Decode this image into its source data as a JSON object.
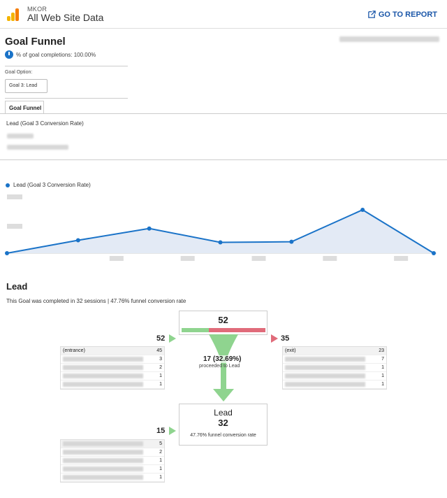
{
  "header": {
    "account": "MKOR",
    "property": "All Web Site Data",
    "go_to_report": "GO TO REPORT"
  },
  "page": {
    "title": "Goal Funnel",
    "completion_pct": "% of goal completions: 100.00%"
  },
  "goal_option": {
    "label": "Goal Option:",
    "selected": "Goal 3: Lead"
  },
  "tabs": [
    {
      "label": "Goal Funnel"
    }
  ],
  "metric": {
    "name": "Lead (Goal 3 Conversion Rate)",
    "legend": "Lead (Goal 3 Conversion Rate)"
  },
  "chart_data": {
    "type": "line",
    "series": [
      {
        "name": "Lead (Goal 3 Conversion Rate)",
        "values": [
          0,
          0.43,
          0.82,
          0.36,
          0.38,
          1.44,
          0
        ]
      }
    ],
    "color": "#1a73c8"
  },
  "funnel": {
    "title": "Lead",
    "subtitle": "This Goal was completed in 32 sessions | 47.76% funnel conversion rate",
    "step1": {
      "total": "52",
      "entrances": "52",
      "exits": "35",
      "proceeded": "17 (32.69%)",
      "proceeded_label": "proceeded to Lead"
    },
    "step2": {
      "name": "Lead",
      "total": "32",
      "entrances": "15",
      "conversion": "47.76% funnel conversion rate"
    },
    "entrances_rows": [
      {
        "label": "(entrance)",
        "value": "45"
      },
      {
        "label": "",
        "value": "3"
      },
      {
        "label": "",
        "value": "2"
      },
      {
        "label": "",
        "value": "1"
      },
      {
        "label": "",
        "value": "1"
      }
    ],
    "exit_rows": [
      {
        "label": "(exit)",
        "value": "23"
      },
      {
        "label": "",
        "value": "7"
      },
      {
        "label": "",
        "value": "1"
      },
      {
        "label": "",
        "value": "1"
      },
      {
        "label": "",
        "value": "1"
      }
    ],
    "lead_entrance_rows": [
      {
        "label": "",
        "value": "5"
      },
      {
        "label": "",
        "value": "2"
      },
      {
        "label": "",
        "value": "1"
      },
      {
        "label": "",
        "value": "1"
      },
      {
        "label": "",
        "value": "1"
      }
    ],
    "colors": {
      "green": "#8fd48f",
      "red": "#e06b7a"
    }
  }
}
